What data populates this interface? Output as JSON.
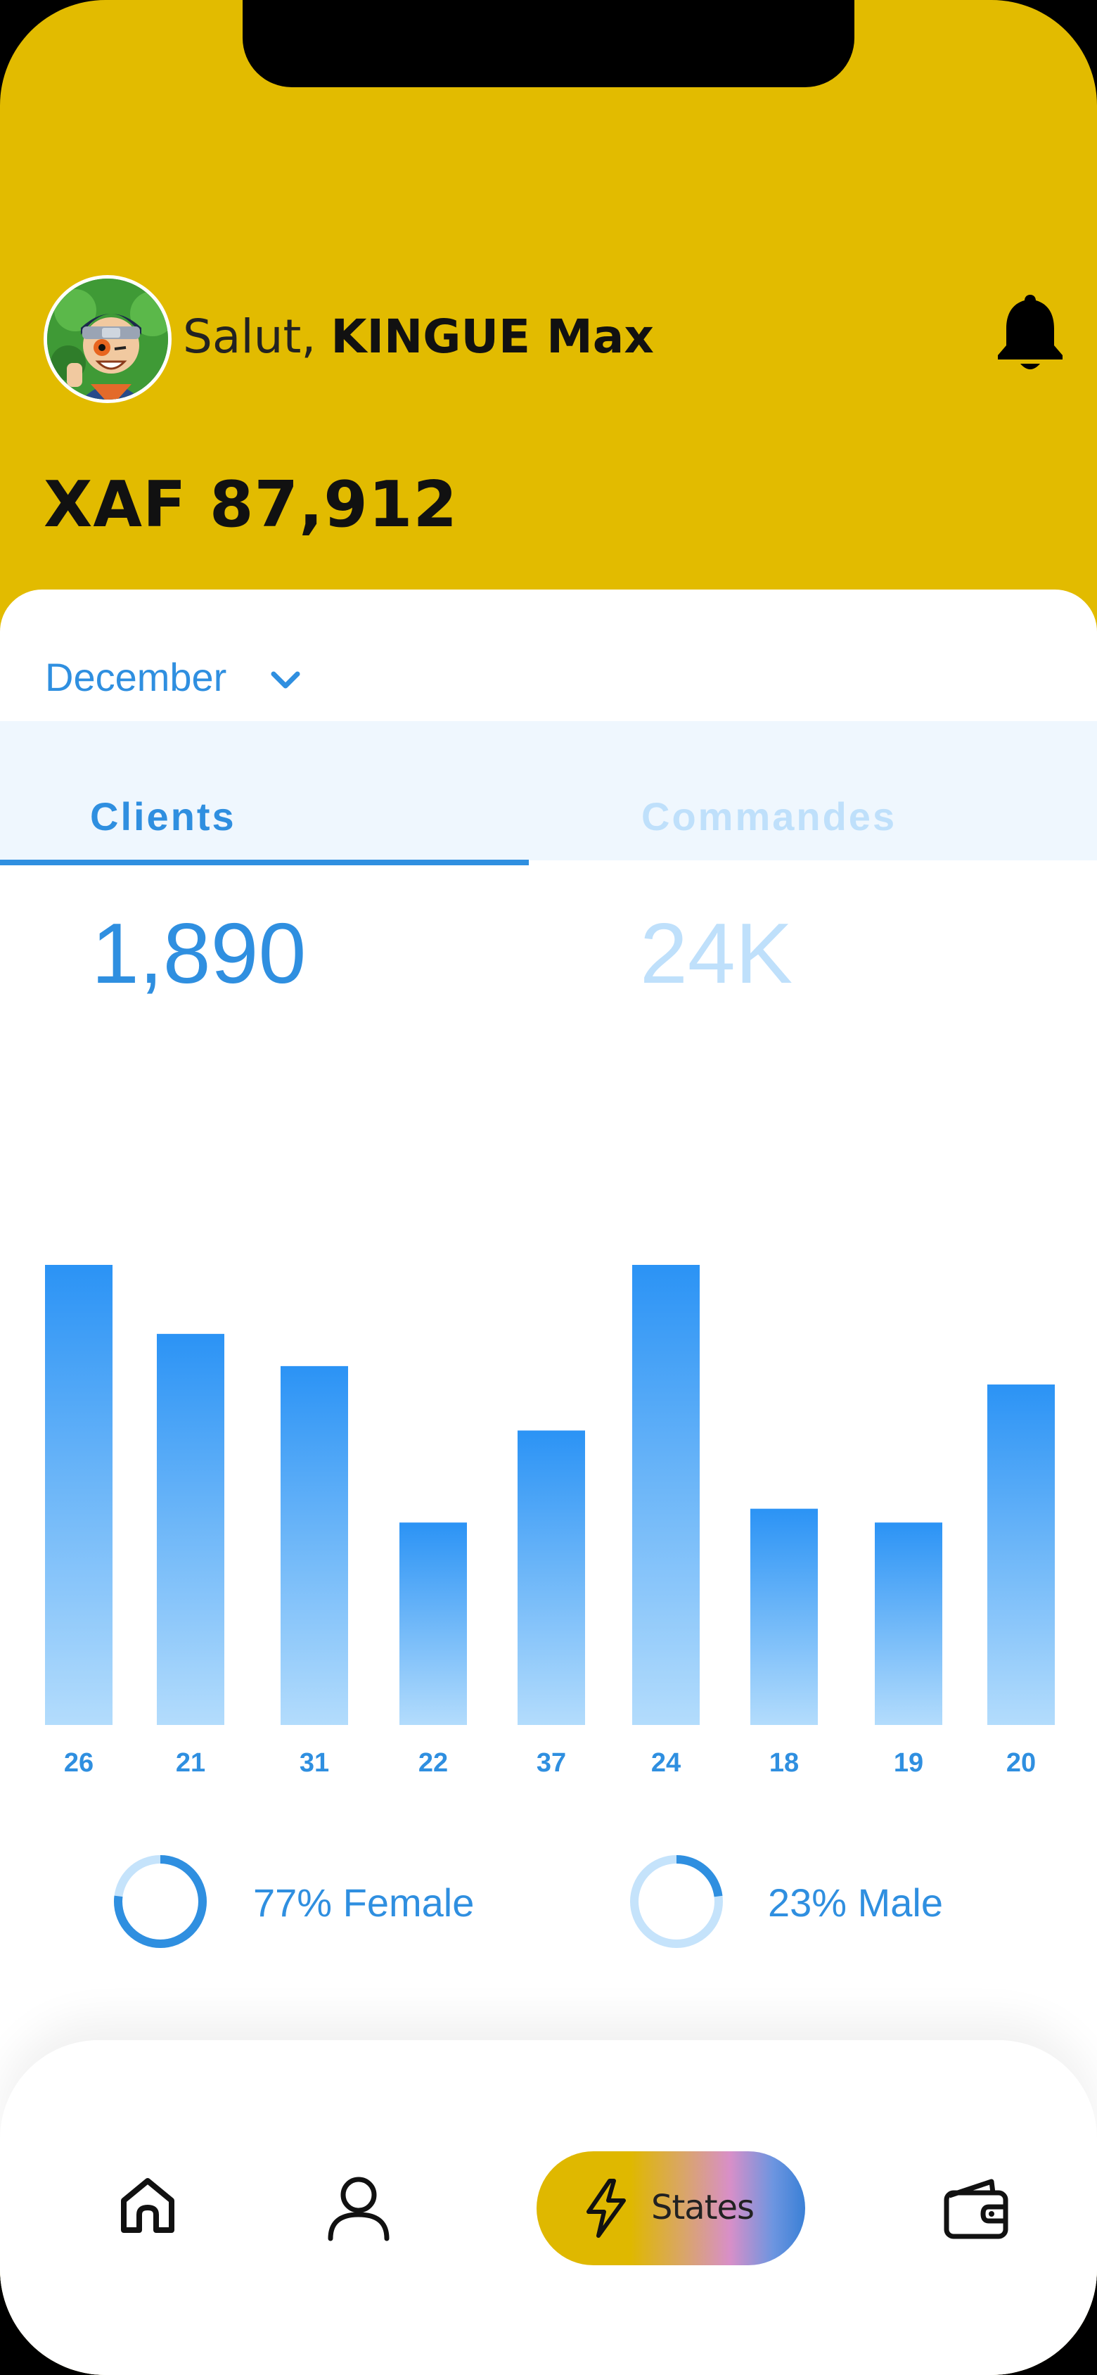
{
  "header": {
    "greeting_prefix": "Salut, ",
    "user_name": "KINGUE Max",
    "balance": "XAF 87,912"
  },
  "filter": {
    "month": "December"
  },
  "tabs": [
    {
      "label": "Clients",
      "value": "1,890",
      "active": true
    },
    {
      "label": "Commandes",
      "value": "24K",
      "active": false
    }
  ],
  "chart_data": {
    "type": "bar",
    "categories": [
      "26",
      "21",
      "31",
      "22",
      "37",
      "24",
      "18",
      "19",
      "20"
    ],
    "values": [
      100,
      85,
      78,
      44,
      64,
      100,
      47,
      44,
      74
    ],
    "ylim": [
      0,
      100
    ],
    "grid": false,
    "colors": {
      "top": "#2b93f5",
      "bottom": "#b3dcfc",
      "labels": "#2f8fe0"
    }
  },
  "gender": {
    "female": {
      "label": "77% Female",
      "percent": 77
    },
    "male": {
      "label": "23% Male",
      "percent": 23
    }
  },
  "nav": {
    "items": [
      {
        "name": "home-icon"
      },
      {
        "name": "user-icon"
      },
      {
        "name": "lightning-icon",
        "label": "States",
        "active": true
      },
      {
        "name": "wallet-icon"
      }
    ]
  },
  "colors": {
    "header_bg": "#e2bb00",
    "accent": "#2f8fe0",
    "accent_light": "#bfe0fb",
    "tab_bg": "#eff7fe"
  }
}
